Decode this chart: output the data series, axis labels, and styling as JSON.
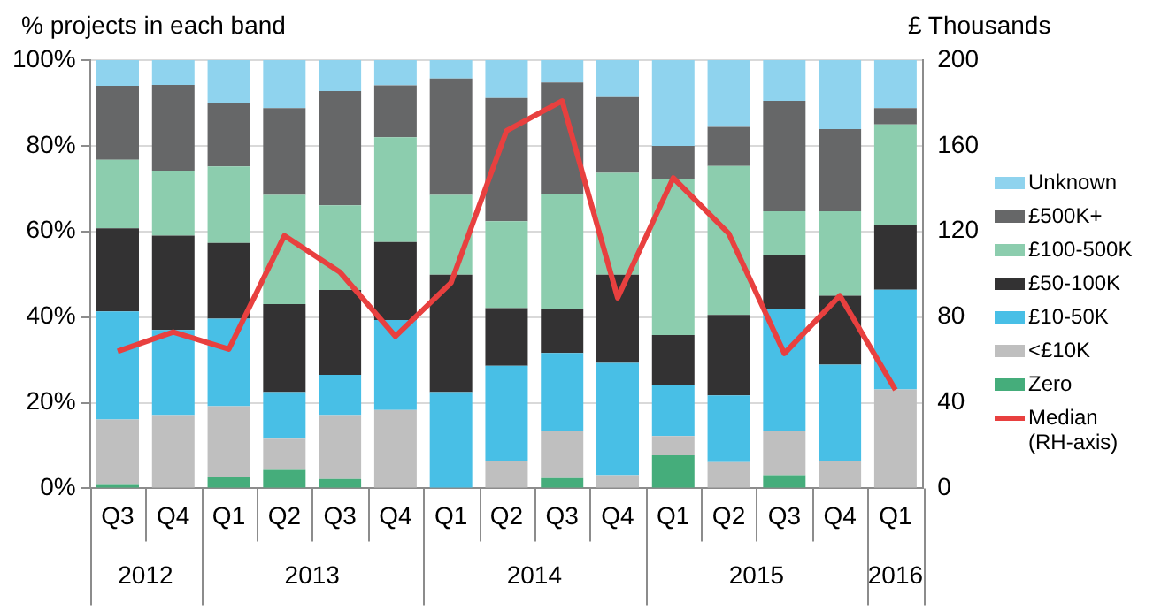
{
  "chart_data": {
    "type": "bar",
    "stacked": true,
    "ylabel": "% projects in each band",
    "y2label": "£ Thousands",
    "categories": [
      "Q3",
      "Q4",
      "Q1",
      "Q2",
      "Q3",
      "Q4",
      "Q1",
      "Q2",
      "Q3",
      "Q4",
      "Q1",
      "Q2",
      "Q3",
      "Q4",
      "Q1"
    ],
    "annotations": [
      "2012",
      "2013",
      "2014",
      "2015",
      "2016"
    ],
    "series": [
      {
        "name": "Zero",
        "color": "#45ad7b",
        "values": [
          0.8,
          0,
          2.7,
          4.3,
          2.2,
          0,
          0,
          0,
          2.4,
          0,
          7.7,
          0,
          3.1,
          0,
          0
        ]
      },
      {
        "name": "<£10K",
        "color": "#bfbfbf",
        "values": [
          15.3,
          17.1,
          16.5,
          7.3,
          14.9,
          18.3,
          0,
          6.5,
          10.9,
          3.1,
          4.5,
          6.1,
          10.2,
          6.5,
          23.1
        ]
      },
      {
        "name": "£10-50K",
        "color": "#48bfe6",
        "values": [
          25.2,
          19.9,
          20.4,
          10.9,
          9.4,
          21.0,
          22.5,
          22.1,
          18.3,
          26.2,
          11.9,
          15.6,
          28.5,
          22.4,
          23.3
        ]
      },
      {
        "name": "£50-100K",
        "color": "#333233",
        "values": [
          19.4,
          22.0,
          17.7,
          20.5,
          19.8,
          18.2,
          27.4,
          13.5,
          10.4,
          20.6,
          11.7,
          18.8,
          12.8,
          16.1,
          15.0
        ]
      },
      {
        "name": "£100-500K",
        "color": "#8ccdae",
        "values": [
          16.0,
          15.2,
          17.9,
          25.5,
          19.8,
          24.5,
          18.6,
          20.3,
          26.6,
          23.8,
          36.4,
          34.8,
          10.1,
          19.7,
          23.6
        ]
      },
      {
        "name": "£500K+",
        "color": "#666768",
        "values": [
          17.3,
          20.0,
          14.9,
          20.3,
          26.7,
          12.1,
          27.2,
          28.8,
          26.2,
          17.7,
          7.8,
          9.1,
          25.8,
          19.2,
          3.8
        ]
      },
      {
        "name": "Unknown",
        "color": "#8fd3ee",
        "values": [
          6.0,
          5.8,
          9.9,
          11.2,
          7.2,
          5.9,
          4.3,
          8.8,
          5.2,
          8.6,
          20.0,
          15.6,
          9.5,
          16.1,
          11.2
        ]
      },
      {
        "name": "Median (RH-axis)",
        "type": "line",
        "axis": "y2",
        "color": "#e8403f",
        "values": [
          64,
          73,
          65,
          118,
          101,
          71,
          96,
          167,
          181,
          89,
          145,
          119,
          63,
          90,
          46
        ]
      }
    ],
    "ylim": [
      0,
      100
    ],
    "yticks": [
      {
        "value": 0,
        "label": "0%"
      },
      {
        "value": 20,
        "label": "20%"
      },
      {
        "value": 40,
        "label": "40%"
      },
      {
        "value": 60,
        "label": "60%"
      },
      {
        "value": 80,
        "label": "80%"
      },
      {
        "value": 100,
        "label": "100%"
      }
    ],
    "y2lim": [
      0,
      200
    ],
    "y2ticks": [
      0,
      40,
      80,
      120,
      160,
      200
    ],
    "grid": "y",
    "legend": "right",
    "marker": "none"
  }
}
